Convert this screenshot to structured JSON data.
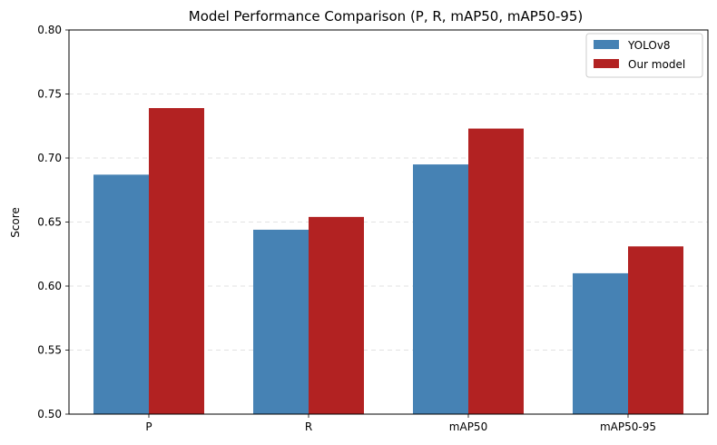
{
  "chart_data": {
    "type": "bar",
    "title": "Model Performance Comparison (P, R, mAP50, mAP50-95)",
    "xlabel": "",
    "ylabel": "Score",
    "categories": [
      "P",
      "R",
      "mAP50",
      "mAP50-95"
    ],
    "series": [
      {
        "name": "YOLOv8",
        "color": "#4682b4",
        "values": [
          0.687,
          0.644,
          0.695,
          0.61
        ]
      },
      {
        "name": "Our model",
        "color": "#b22222",
        "values": [
          0.739,
          0.654,
          0.723,
          0.631
        ]
      }
    ],
    "ylim": [
      0.5,
      0.8
    ],
    "yticks": [
      "0.50",
      "0.55",
      "0.60",
      "0.65",
      "0.70",
      "0.75",
      "0.80"
    ],
    "grid": "y-dashed",
    "legend": "top-right"
  }
}
